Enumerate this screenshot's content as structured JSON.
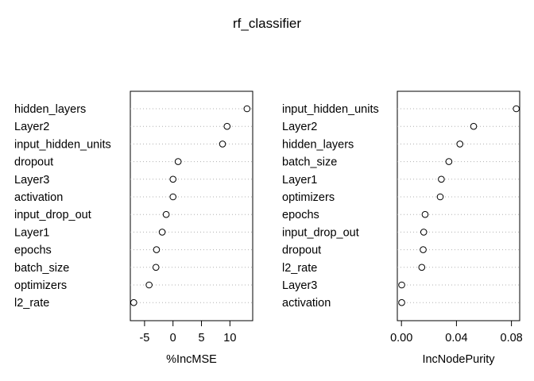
{
  "chart_data": [
    {
      "type": "scatter",
      "subtype": "dotchart",
      "xlabel": "%IncMSE",
      "xlim": [
        -7.5,
        14
      ],
      "xticks": [
        -5,
        0,
        5,
        10
      ],
      "xtick_labels": [
        "-5",
        "0",
        "5",
        "10"
      ],
      "categories": [
        "hidden_layers",
        "Layer2",
        "input_hidden_units",
        "dropout",
        "Layer3",
        "activation",
        "input_drop_out",
        "Layer1",
        "epochs",
        "batch_size",
        "optimizers",
        "l2_rate"
      ],
      "values": [
        13.0,
        9.5,
        8.7,
        0.9,
        0.0,
        0.0,
        -1.2,
        -1.9,
        -2.9,
        -3.0,
        -4.2,
        -6.9
      ]
    },
    {
      "type": "scatter",
      "subtype": "dotchart",
      "xlabel": "IncNodePurity",
      "xlim": [
        -0.003,
        0.086
      ],
      "xticks": [
        0.0,
        0.04,
        0.08
      ],
      "xtick_labels": [
        "0.00",
        "0.04",
        "0.08"
      ],
      "categories": [
        "input_hidden_units",
        "Layer2",
        "hidden_layers",
        "batch_size",
        "Layer1",
        "optimizers",
        "epochs",
        "input_drop_out",
        "dropout",
        "l2_rate",
        "Layer3",
        "activation"
      ],
      "values": [
        0.0835,
        0.0525,
        0.0425,
        0.0345,
        0.029,
        0.0282,
        0.0172,
        0.0162,
        0.0158,
        0.0148,
        0.0002,
        0.0002
      ]
    }
  ],
  "title": "rf_classifier"
}
